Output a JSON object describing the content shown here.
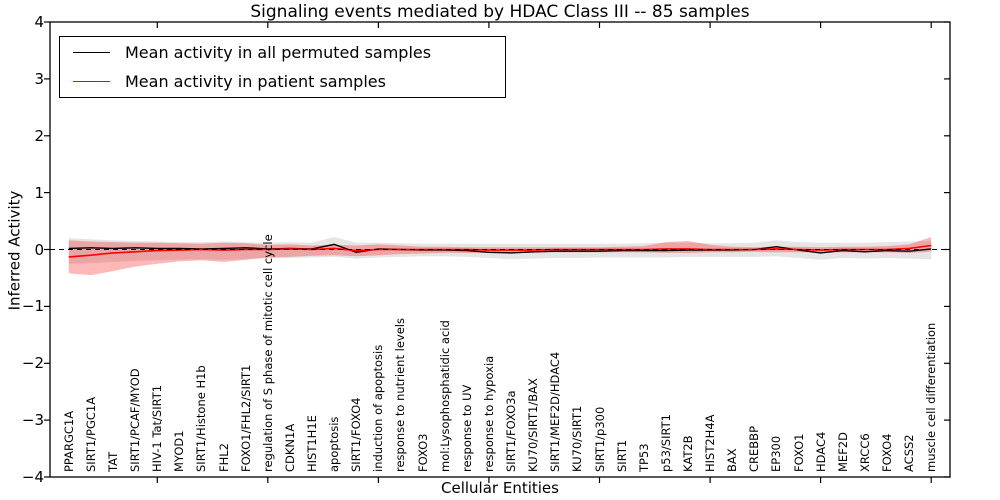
{
  "chart_data": {
    "type": "line",
    "title": "Signaling events mediated by HDAC Class III -- 85 samples",
    "xlabel": "Cellular Entities",
    "ylabel": "Inferred Activity",
    "ylim": [
      -4,
      4
    ],
    "ytick_labels": [
      "−4",
      "−3",
      "−2",
      "−1",
      "0",
      "1",
      "2",
      "3",
      "4"
    ],
    "yticks": [
      -4,
      -3,
      -2,
      -1,
      0,
      1,
      2,
      3,
      4
    ],
    "xticks_at_categories": [
      5,
      10,
      15,
      20,
      25,
      30,
      35,
      40
    ],
    "grid": false,
    "legend_position": "upper left",
    "zero_line": {
      "y": 0,
      "style": "dashed",
      "color": "#000000"
    },
    "categories": [
      "PPARGC1A",
      "SIRT1/PGC1A",
      "TAT",
      "SIRT1/PCAF/MYOD",
      "HIV-1 Tat/SIRT1",
      "MYOD1",
      "SIRT1/Histone H1b",
      "FHL2",
      "FOXO1/FHL2/SIRT1",
      "regulation of S phase of mitotic cell cycle",
      "CDKN1A",
      "HIST1H1E",
      "apoptosis",
      "SIRT1/FOXO4",
      "induction of apoptosis",
      "response to nutrient levels",
      "FOXO3",
      "mol:Lysophosphatidic acid",
      "response to UV",
      "response to hypoxia",
      "SIRT1/FOXO3a",
      "KU70/SIRT1/BAX",
      "SIRT1/MEF2D/HDAC4",
      "KU70/SIRT1",
      "SIRT1/p300",
      "SIRT1",
      "TP53",
      "p53/SIRT1",
      "KAT2B",
      "HIST2H4A",
      "BAX",
      "CREBBP",
      "EP300",
      "FOXO1",
      "HDAC4",
      "MEF2D",
      "XRCC6",
      "FOXO4",
      "ACSS2",
      "muscle cell differentiation"
    ],
    "series": [
      {
        "name": "Mean activity in all permuted samples",
        "color": "#000000",
        "style": "solid",
        "values": [
          0.02,
          0.03,
          0.02,
          0.03,
          0.02,
          0.02,
          0.01,
          0.02,
          0.03,
          0.01,
          0.02,
          0.01,
          0.09,
          -0.05,
          0.01,
          0.0,
          -0.01,
          -0.01,
          -0.02,
          -0.05,
          -0.06,
          -0.04,
          -0.03,
          -0.03,
          -0.03,
          -0.02,
          -0.02,
          -0.02,
          -0.01,
          -0.01,
          -0.01,
          0.0,
          0.05,
          -0.01,
          -0.06,
          -0.02,
          -0.04,
          -0.02,
          -0.03,
          0.01
        ]
      },
      {
        "name": "Mean activity in patient samples",
        "color": "#ff0000",
        "style": "solid",
        "values": [
          -0.13,
          -0.1,
          -0.06,
          -0.04,
          -0.02,
          -0.01,
          0.0,
          -0.01,
          0.0,
          0.0,
          0.01,
          0.0,
          0.02,
          -0.02,
          0.0,
          0.0,
          0.0,
          0.0,
          0.0,
          -0.01,
          -0.01,
          -0.01,
          0.0,
          0.0,
          0.0,
          0.0,
          0.0,
          0.01,
          0.01,
          0.0,
          0.0,
          0.0,
          0.01,
          0.0,
          -0.01,
          0.0,
          0.0,
          0.0,
          0.02,
          0.07
        ]
      }
    ],
    "bands": [
      {
        "name": "Permuted samples activity spread",
        "color": "#000000",
        "opacity": 0.1,
        "upper": [
          0.2,
          0.18,
          0.16,
          0.15,
          0.14,
          0.13,
          0.13,
          0.14,
          0.13,
          0.12,
          0.13,
          0.12,
          0.22,
          0.12,
          0.12,
          0.11,
          0.1,
          0.1,
          0.1,
          0.1,
          0.1,
          0.1,
          0.1,
          0.1,
          0.1,
          0.1,
          0.11,
          0.12,
          0.12,
          0.11,
          0.11,
          0.12,
          0.16,
          0.13,
          0.12,
          0.12,
          0.12,
          0.13,
          0.14,
          0.15
        ],
        "lower": [
          -0.25,
          -0.24,
          -0.22,
          -0.2,
          -0.19,
          -0.18,
          -0.17,
          -0.18,
          -0.17,
          -0.15,
          -0.15,
          -0.14,
          -0.13,
          -0.16,
          -0.14,
          -0.13,
          -0.12,
          -0.12,
          -0.13,
          -0.15,
          -0.17,
          -0.16,
          -0.15,
          -0.15,
          -0.14,
          -0.14,
          -0.14,
          -0.14,
          -0.13,
          -0.13,
          -0.13,
          -0.13,
          -0.12,
          -0.15,
          -0.18,
          -0.15,
          -0.16,
          -0.15,
          -0.16,
          -0.17
        ]
      },
      {
        "name": "Patient samples activity spread",
        "color": "#ff0000",
        "opacity": 0.28,
        "upper": [
          0.16,
          0.14,
          0.13,
          0.12,
          0.12,
          0.11,
          0.1,
          0.12,
          0.11,
          0.08,
          0.09,
          0.07,
          0.08,
          0.07,
          0.09,
          0.07,
          0.05,
          0.05,
          0.04,
          0.04,
          0.04,
          0.04,
          0.04,
          0.04,
          0.04,
          0.05,
          0.06,
          0.13,
          0.15,
          0.08,
          0.05,
          0.04,
          0.05,
          0.05,
          0.04,
          0.05,
          0.05,
          0.06,
          0.09,
          0.22
        ],
        "lower": [
          -0.42,
          -0.45,
          -0.38,
          -0.3,
          -0.25,
          -0.21,
          -0.19,
          -0.22,
          -0.18,
          -0.14,
          -0.13,
          -0.11,
          -0.1,
          -0.12,
          -0.1,
          -0.08,
          -0.07,
          -0.06,
          -0.06,
          -0.06,
          -0.06,
          -0.06,
          -0.05,
          -0.05,
          -0.05,
          -0.05,
          -0.05,
          -0.06,
          -0.06,
          -0.05,
          -0.05,
          -0.04,
          -0.05,
          -0.05,
          -0.05,
          -0.05,
          -0.05,
          -0.05,
          -0.06,
          -0.04
        ]
      }
    ]
  }
}
